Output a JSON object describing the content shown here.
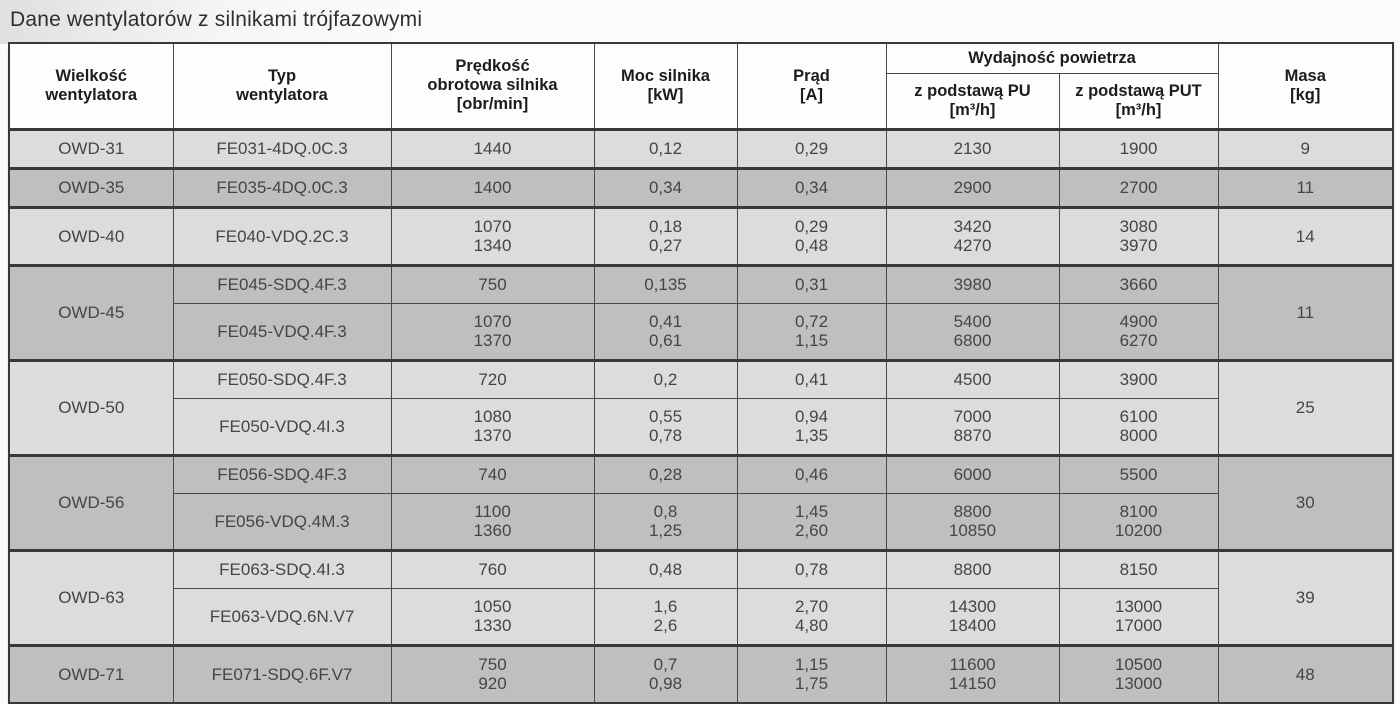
{
  "page": {
    "title": "Dane wentylatorów z silnikami trójfazowymi"
  },
  "table": {
    "colors": {
      "row_light": "#dcdcdc",
      "row_dark": "#bfbfbf",
      "border": "#4a4a4a",
      "border_heavy": "#383838",
      "header_bg": "#fdfdfd",
      "text": "#454545",
      "header_text": "#1c1c1c"
    },
    "headers": {
      "size": "Wielkość\nwentylatora",
      "type": "Typ\nwentylatora",
      "speed": "Prędkość\nobrotowa silnika\n[obr/min]",
      "power": "Moc silnika\n[kW]",
      "current": "Prąd\n[A]",
      "airflow": "Wydajność powietrza",
      "airflow_pu": "z podstawą PU\n[m³/h]",
      "airflow_put": "z podstawą PUT\n[m³/h]",
      "mass": "Masa\n[kg]"
    },
    "groups": [
      {
        "size": "OWD-31",
        "mass": "9",
        "rows": [
          {
            "type": "FE031-4DQ.0C.3",
            "speed": "1440",
            "power": "0,12",
            "current": "0,29",
            "pu": "2130",
            "put": "1900"
          }
        ]
      },
      {
        "size": "OWD-35",
        "mass": "11",
        "rows": [
          {
            "type": "FE035-4DQ.0C.3",
            "speed": "1400",
            "power": "0,34",
            "current": "0,34",
            "pu": "2900",
            "put": "2700"
          }
        ]
      },
      {
        "size": "OWD-40",
        "mass": "14",
        "rows": [
          {
            "type": "FE040-VDQ.2C.3",
            "speed": "1070\n1340",
            "power": "0,18\n0,27",
            "current": "0,29\n0,48",
            "pu": "3420\n4270",
            "put": "3080\n3970"
          }
        ]
      },
      {
        "size": "OWD-45",
        "mass": "11",
        "rows": [
          {
            "type": "FE045-SDQ.4F.3",
            "speed": "750",
            "power": "0,135",
            "current": "0,31",
            "pu": "3980",
            "put": "3660"
          },
          {
            "type": "FE045-VDQ.4F.3",
            "speed": "1070\n1370",
            "power": "0,41\n0,61",
            "current": "0,72\n1,15",
            "pu": "5400\n6800",
            "put": "4900\n6270"
          }
        ]
      },
      {
        "size": "OWD-50",
        "mass": "25",
        "rows": [
          {
            "type": "FE050-SDQ.4F.3",
            "speed": "720",
            "power": "0,2",
            "current": "0,41",
            "pu": "4500",
            "put": "3900"
          },
          {
            "type": "FE050-VDQ.4I.3",
            "speed": "1080\n1370",
            "power": "0,55\n0,78",
            "current": "0,94\n1,35",
            "pu": "7000\n8870",
            "put": "6100\n8000"
          }
        ]
      },
      {
        "size": "OWD-56",
        "mass": "30",
        "rows": [
          {
            "type": "FE056-SDQ.4F.3",
            "speed": "740",
            "power": "0,28",
            "current": "0,46",
            "pu": "6000",
            "put": "5500"
          },
          {
            "type": "FE056-VDQ.4M.3",
            "speed": "1100\n1360",
            "power": "0,8\n1,25",
            "current": "1,45\n2,60",
            "pu": "8800\n10850",
            "put": "8100\n10200"
          }
        ]
      },
      {
        "size": "OWD-63",
        "mass": "39",
        "rows": [
          {
            "type": "FE063-SDQ.4I.3",
            "speed": "760",
            "power": "0,48",
            "current": "0,78",
            "pu": "8800",
            "put": "8150"
          },
          {
            "type": "FE063-VDQ.6N.V7",
            "speed": "1050\n1330",
            "power": "1,6\n2,6",
            "current": "2,70\n4,80",
            "pu": "14300\n18400",
            "put": "13000\n17000"
          }
        ]
      },
      {
        "size": "OWD-71",
        "mass": "48",
        "rows": [
          {
            "type": "FE071-SDQ.6F.V7",
            "speed": "750\n920",
            "power": "0,7\n0,98",
            "current": "1,15\n1,75",
            "pu": "11600\n14150",
            "put": "10500\n13000"
          }
        ]
      }
    ]
  }
}
